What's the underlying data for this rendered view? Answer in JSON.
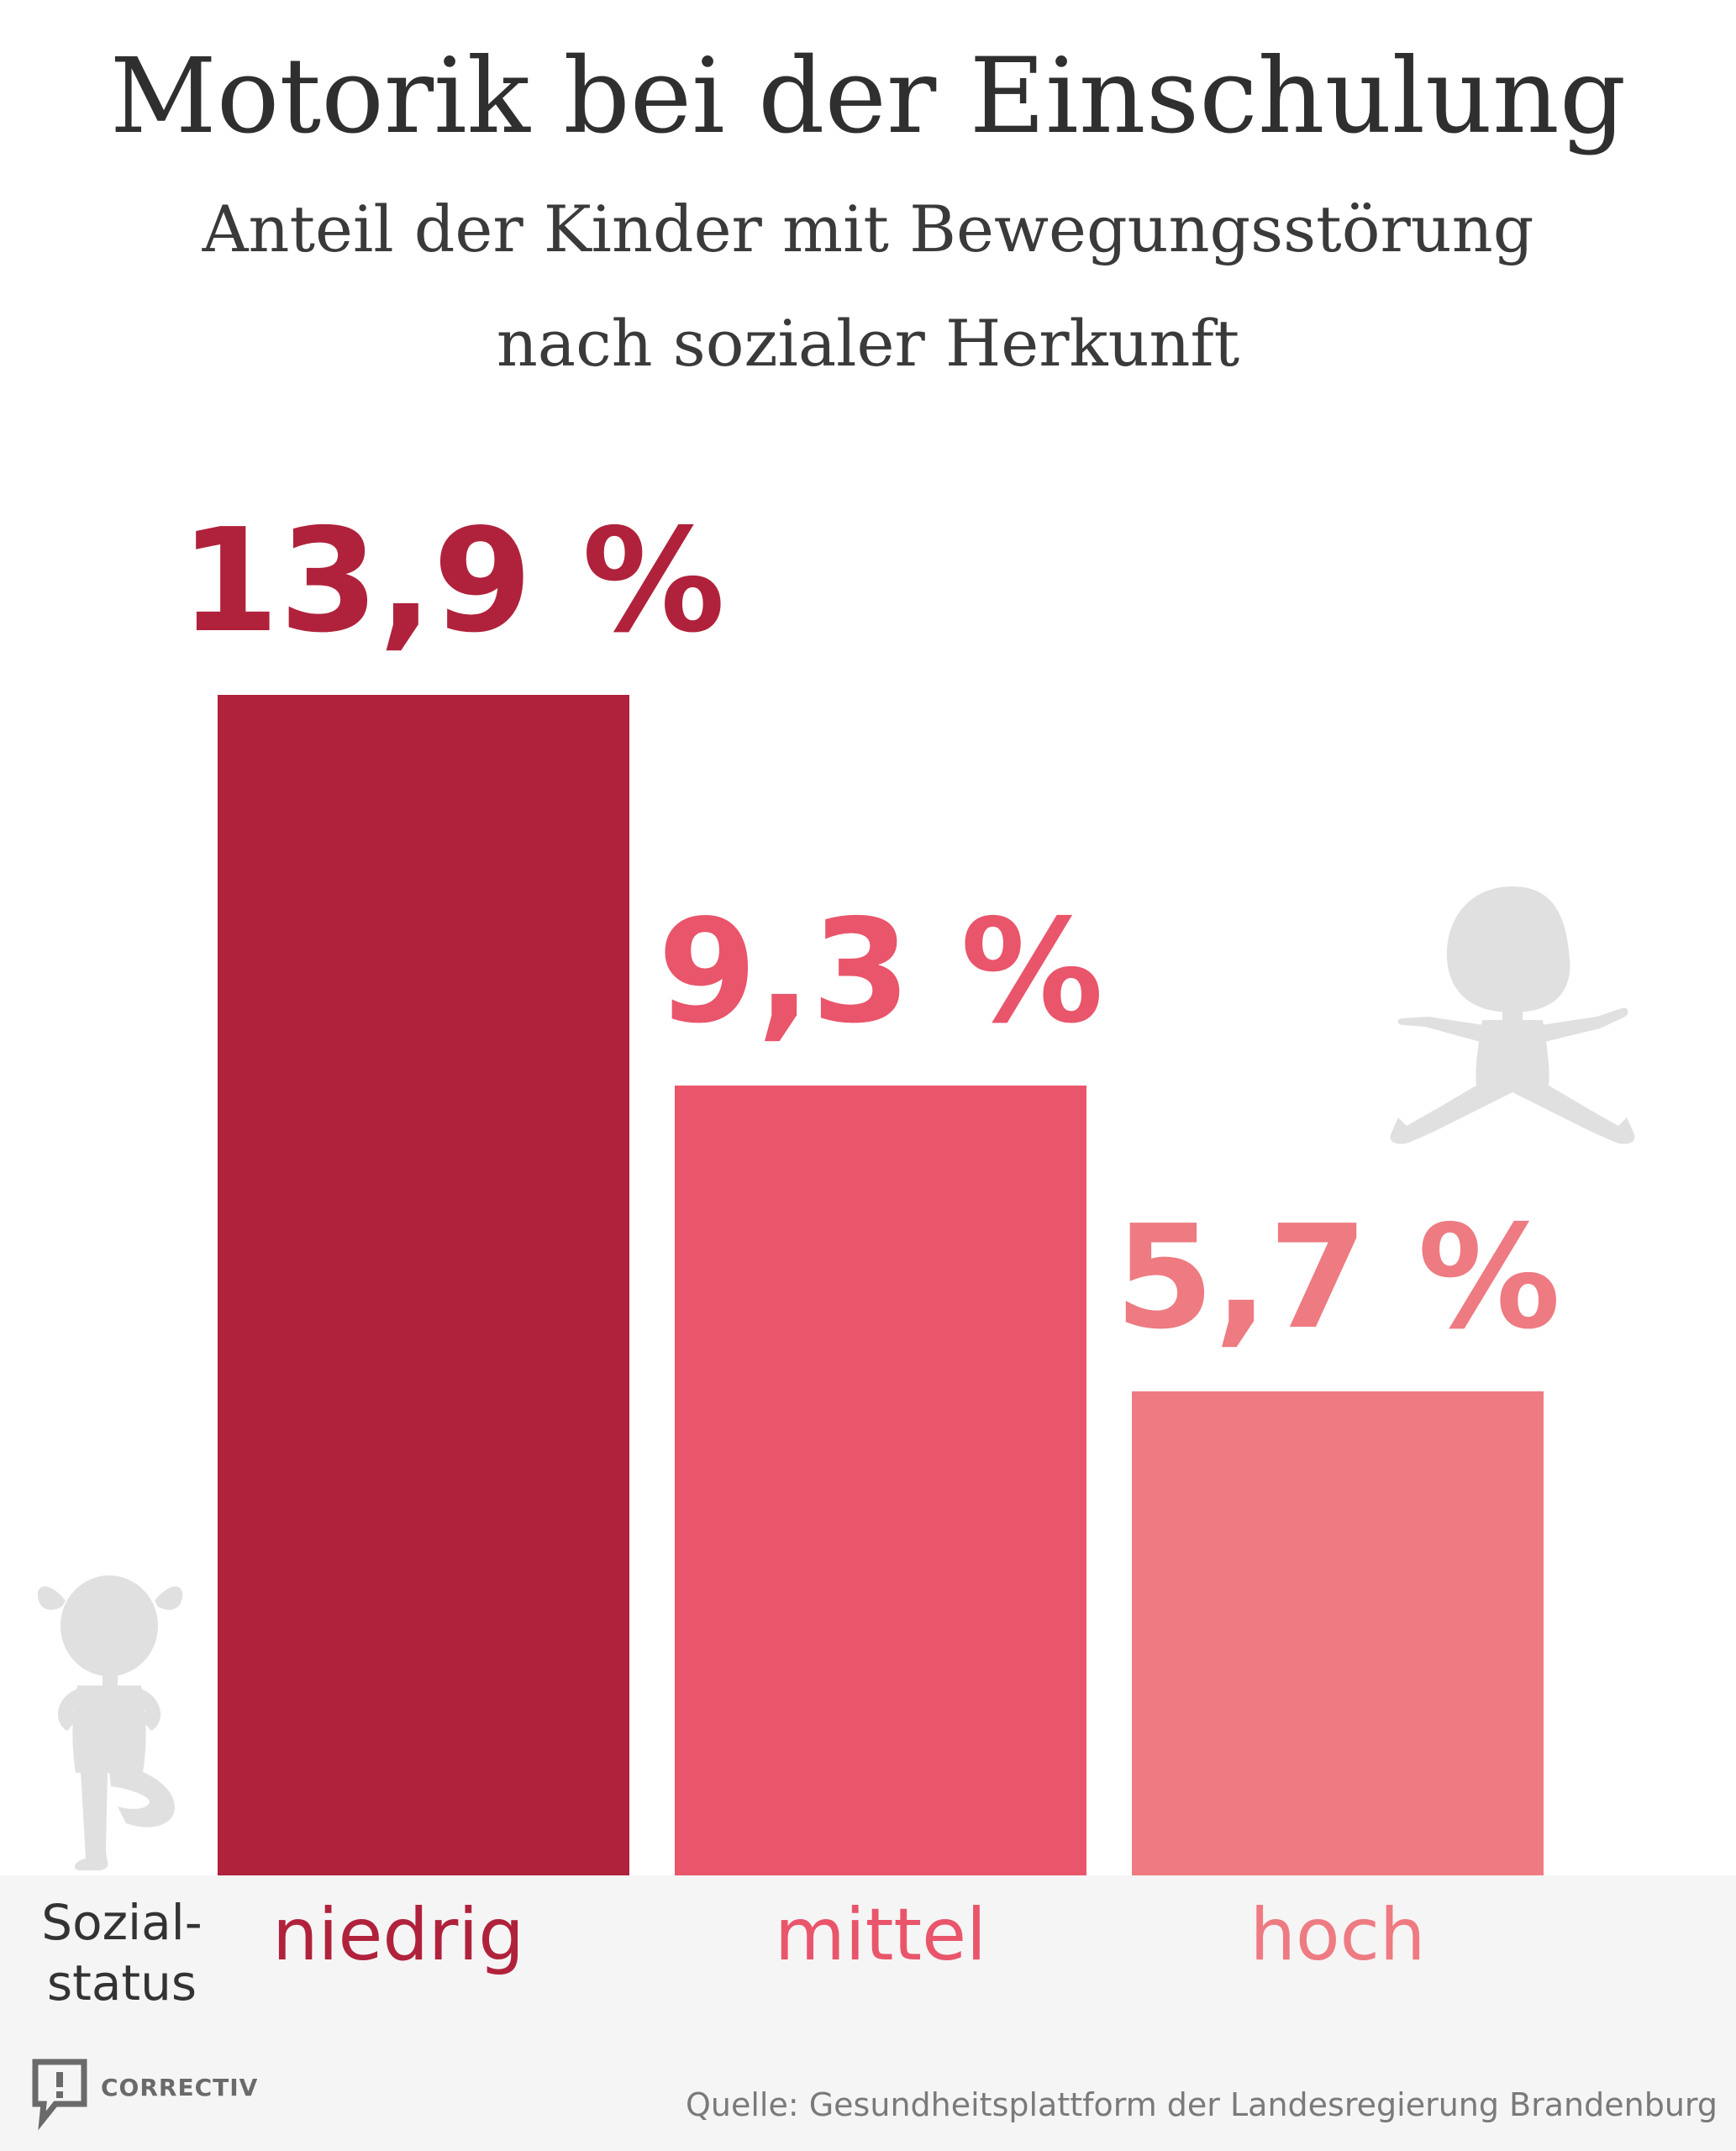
{
  "header": {
    "title": "Motorik bei der Einschulung",
    "subtitle_line1": "Anteil der Kinder mit Bewegungsstörung",
    "subtitle_line2": "nach sozialer Herkunft"
  },
  "chart_data": {
    "type": "bar",
    "title": "Motorik bei der Einschulung",
    "subtitle": "Anteil der Kinder mit Bewegungsstörung nach sozialer Herkunft",
    "xlabel_line1": "Sozial-",
    "xlabel_line2": "status",
    "ylabel": "",
    "categories": [
      "niedrig",
      "mittel",
      "hoch"
    ],
    "values": [
      13.9,
      9.3,
      5.7
    ],
    "value_labels": [
      "13,9 %",
      "9,3 %",
      "5,7 %"
    ],
    "colors": [
      "#b0223b",
      "#e9556b",
      "#ee7b82"
    ],
    "ylim": [
      0,
      13.9
    ],
    "grid": false,
    "legend": "none"
  },
  "footer": {
    "source": "Quelle: Gesundheitsplattform der Landesregierung Brandenburg",
    "logo_text": "CORRECTIV"
  },
  "icons": {
    "child_left": "child-standing-silhouette-icon",
    "child_right": "child-jumping-silhouette-icon",
    "logo": "correctiv-speech-bubble-icon"
  },
  "colors": {
    "silhouette": "#e0e0e0",
    "title_text": "#2f2f2f",
    "band": "#f5f5f5"
  }
}
